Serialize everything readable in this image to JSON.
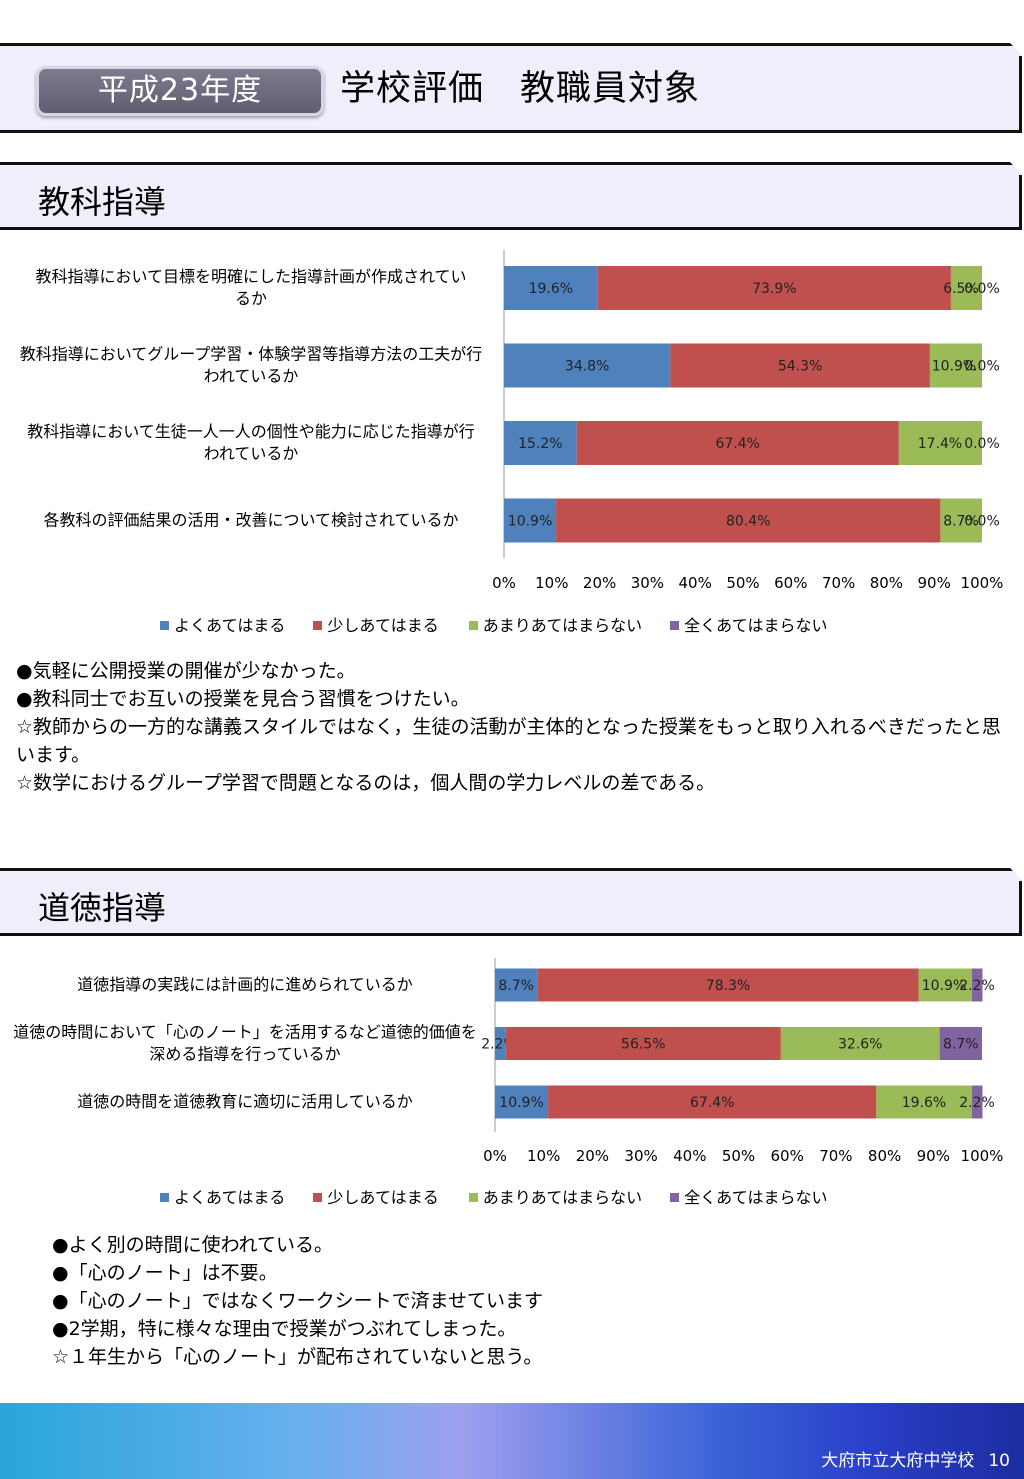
{
  "header": {
    "year_label": "平成23年度",
    "title": "学校評価　教職員対象"
  },
  "legend": {
    "items": [
      {
        "label": "よくあてはまる",
        "color": "#4f81bd"
      },
      {
        "label": "少しあてはまる",
        "color": "#c0504d"
      },
      {
        "label": "あまりあてはまらない",
        "color": "#9bbb59"
      },
      {
        "label": "全くあてはまらない",
        "color": "#8064a2"
      }
    ]
  },
  "section1": {
    "title": "教科指導",
    "notes": [
      "●気軽に公開授業の開催が少なかった。",
      "●教科同士でお互いの授業を見合う習慣をつけたい。",
      "☆教師からの一方的な講義スタイルではなく，生徒の活動が主体的となった授業をもっと取り入れるべきだったと思います。",
      "☆数学におけるグループ学習で問題となるのは，個人間の学力レベルの差である。"
    ]
  },
  "section2": {
    "title": "道徳指導",
    "notes": [
      "●よく別の時間に使われている。",
      "●「心のノート」は不要。",
      "●「心のノート」ではなくワークシートで済ませています",
      "●2学期，特に様々な理由で授業がつぶれてしまった。",
      "☆１年生から「心のノート」が配布されていないと思う。"
    ]
  },
  "footer": {
    "school": "大府市立大府中学校",
    "page": "10"
  },
  "chart_data": [
    {
      "type": "bar",
      "orientation": "horizontal",
      "stacked": true,
      "percent": true,
      "categories": [
        "教科指導において目標を明確にした指導計画が作成されているか",
        "教科指導においてグループ学習・体験学習等指導方法の工夫が行われているか",
        "教科指導において生徒一人一人の個性や能力に応じた指導が行われているか",
        "各教科の評価結果の活用・改善について検討されているか"
      ],
      "series": [
        {
          "name": "よくあてはまる",
          "values": [
            19.6,
            34.8,
            15.2,
            10.9
          ]
        },
        {
          "name": "少しあてはまる",
          "values": [
            73.9,
            54.3,
            67.4,
            80.4
          ]
        },
        {
          "name": "あまりあてはまらない",
          "values": [
            6.5,
            10.9,
            17.4,
            8.7
          ]
        },
        {
          "name": "全くあてはまらない",
          "values": [
            0.0,
            0.0,
            0.0,
            0.0
          ]
        }
      ],
      "xticks": [
        "0%",
        "10%",
        "20%",
        "30%",
        "40%",
        "50%",
        "60%",
        "70%",
        "80%",
        "90%",
        "100%"
      ],
      "xlim": [
        0,
        100
      ],
      "legend_position": "bottom"
    },
    {
      "type": "bar",
      "orientation": "horizontal",
      "stacked": true,
      "percent": true,
      "categories": [
        "道徳指導の実践には計画的に進められているか",
        "道徳の時間において「心のノート」を活用するなど道徳的価値を深める指導を行っているか",
        "道徳の時間を道徳教育に適切に活用しているか"
      ],
      "series": [
        {
          "name": "よくあてはまる",
          "values": [
            8.7,
            2.2,
            10.9
          ]
        },
        {
          "name": "少しあてはまる",
          "values": [
            78.3,
            56.5,
            67.4
          ]
        },
        {
          "name": "あまりあてはまらない",
          "values": [
            10.9,
            32.6,
            19.6
          ]
        },
        {
          "name": "全くあてはまらない",
          "values": [
            2.2,
            8.7,
            2.2
          ]
        }
      ],
      "xticks": [
        "0%",
        "10%",
        "20%",
        "30%",
        "40%",
        "50%",
        "60%",
        "70%",
        "80%",
        "90%",
        "100%"
      ],
      "xlim": [
        0,
        100
      ],
      "legend_position": "bottom"
    }
  ]
}
